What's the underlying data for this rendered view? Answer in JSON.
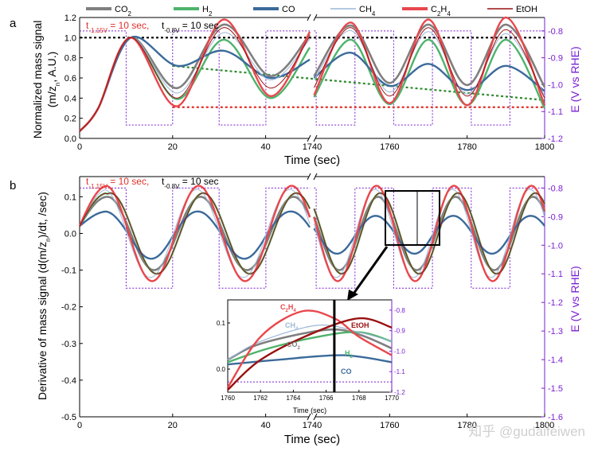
{
  "figure": {
    "watermark": "知乎 @gudaifeiwen",
    "x_break_label": "1740",
    "x_label": "Time (sec)"
  },
  "legend": {
    "items": [
      {
        "key": "co2",
        "label_main": "CO",
        "label_sub": "2",
        "color": "#7f7f7f"
      },
      {
        "key": "h2",
        "label_main": "H",
        "label_sub": "2",
        "color": "#4db36b"
      },
      {
        "key": "co",
        "label_main": "CO",
        "label_sub": "",
        "color": "#3b6a9a"
      },
      {
        "key": "ch4",
        "label_main": "CH",
        "label_sub": "4",
        "color": "#9cb8d8"
      },
      {
        "key": "c2h4",
        "label_main": "C",
        "label_sub": "2",
        "label_main2": "H",
        "label_sub2": "4",
        "color": "#e8474c"
      },
      {
        "key": "etoh",
        "label_main": "EtOH",
        "label_sub": "",
        "color": "#9a1010"
      }
    ]
  },
  "colors": {
    "potential": "#7a1fd1",
    "right_axis": "#7a1fd1",
    "trend_green": "#2e8b2e",
    "trend_red": "#e0302a",
    "ref_black": "#000000",
    "annotation_red": "#e0302a"
  },
  "panel_a": {
    "letter": "a",
    "annotation_red": "t",
    "annotation_red_sub": "-1.15V",
    "annotation_red_tail": " = 10 sec,",
    "annotation_black": "t",
    "annotation_black_sub": "-0.8V",
    "annotation_black_tail": " = 10 sec",
    "y_label_line1": "Normalized mass signal",
    "y_label_line2": "(m/z",
    "y_label_line2_sub": "n",
    "y_label_line2_tail": ", A.U.)",
    "right_label": "E (V vs RHE)",
    "x_ticks_left": [
      "0",
      "20",
      "40"
    ],
    "x_ticks_right": [
      "1760",
      "1780",
      "1800"
    ],
    "y_ticks": [
      "0.0",
      "0.2",
      "0.4",
      "0.6",
      "0.8",
      "1.0",
      "1.2"
    ],
    "right_ticks": [
      "-0.8",
      "-0.9",
      "-1.0",
      "-1.1",
      "-1.2"
    ]
  },
  "panel_b": {
    "letter": "b",
    "annotation_red": "t",
    "annotation_red_sub": "-1.15V",
    "annotation_red_tail": " = 10 sec,",
    "annotation_black": "t",
    "annotation_black_sub": "-0.8V",
    "annotation_black_tail": " = 10 sec",
    "y_label": "Derivative of mass signal (d(m/z",
    "y_label_sub": "n",
    "y_label_tail": ")/dt, /sec)",
    "right_label": "E (V vs RHE)",
    "x_ticks_left": [
      "0",
      "20",
      "40"
    ],
    "x_ticks_right": [
      "1760",
      "1780",
      "1800"
    ],
    "y_ticks": [
      "-0.5",
      "-0.4",
      "-0.3",
      "-0.2",
      "-0.1",
      "0.0",
      "0.1"
    ],
    "right_ticks": [
      "-0.8",
      "-0.9",
      "-1.0",
      "-1.1",
      "-1.2",
      "-1.3",
      "-1.4",
      "-1.5",
      "-1.6"
    ]
  },
  "inset": {
    "x_label": "Time (sec)",
    "x_ticks": [
      "1760",
      "1762",
      "1764",
      "1766",
      "1768",
      "1770"
    ],
    "y_ticks": [
      "0.0",
      "0.1"
    ],
    "right_ticks": [
      "-0.8",
      "-0.9",
      "-1.0",
      "-1.1",
      "-1.2"
    ],
    "labels": {
      "c2h4_main": "C",
      "c2h4_s1": "2",
      "c2h4_m2": "H",
      "c2h4_s2": "4",
      "ch4_main": "CH",
      "ch4_sub": "4",
      "co2_main": "CO",
      "co2_sub": "2",
      "etoh": "EtOH",
      "h2_main": "H",
      "h2_sub": "2",
      "co": "CO"
    },
    "marker_time": 1766.5
  },
  "chart_data": [
    {
      "type": "line",
      "panel": "a",
      "title": "",
      "xlabel": "Time (sec)",
      "ylabel": "Normalized mass signal (m/zn, A.U.)",
      "y2label": "E (V vs RHE)",
      "x_segments": [
        [
          0,
          50
        ],
        [
          1740,
          1800
        ]
      ],
      "ylim": [
        0.0,
        1.2
      ],
      "y2lim": [
        -1.2,
        -0.75
      ],
      "potential_step": {
        "low": -1.15,
        "high": -0.8,
        "period_sec": 20,
        "low_duration_sec": 10,
        "high_duration_sec": 10
      },
      "reference_line_y": 1.0,
      "trend_lines": {
        "green": {
          "x": [
            20,
            1800
          ],
          "y": [
            0.72,
            0.38
          ]
        },
        "red": {
          "x": [
            20,
            1800
          ],
          "y": [
            0.31,
            0.31
          ]
        }
      },
      "peak_times": {
        "segment1": [
          11,
          31,
          50
        ],
        "segment2": [
          1750,
          1770,
          1790
        ]
      },
      "series": [
        {
          "name": "CO2",
          "peak_values": [
            1.0,
            1.13,
            1.12,
            1.13,
            1.13,
            1.12
          ],
          "trough_values": [
            0.5,
            0.62,
            0.55,
            0.53,
            0.51
          ]
        },
        {
          "name": "H2",
          "peak_values": [
            1.0,
            0.98,
            0.98,
            0.98,
            0.98,
            0.96
          ],
          "trough_values": [
            0.39,
            0.4,
            0.34,
            0.33,
            0.3
          ]
        },
        {
          "name": "CO",
          "peak_values": [
            1.0,
            0.87,
            0.85,
            0.74,
            0.72,
            0.66
          ],
          "trough_values": [
            0.72,
            0.6,
            0.52,
            0.48,
            0.47
          ]
        },
        {
          "name": "CH4",
          "peak_values": [
            1.0,
            1.05,
            1.07,
            1.06,
            1.04,
            1.05
          ],
          "trough_values": [
            0.45,
            0.58,
            0.46,
            0.44,
            0.42
          ]
        },
        {
          "name": "C2H4",
          "peak_values": [
            1.0,
            1.18,
            1.15,
            1.18,
            1.2,
            1.2
          ],
          "trough_values": [
            0.32,
            0.42,
            0.35,
            0.33,
            0.33
          ]
        },
        {
          "name": "EtOH",
          "peak_values": [
            1.0,
            1.1,
            1.1,
            1.1,
            1.08,
            1.08
          ],
          "trough_values": [
            0.4,
            0.5,
            0.42,
            0.42,
            0.4
          ]
        }
      ]
    },
    {
      "type": "line",
      "panel": "b",
      "title": "",
      "xlabel": "Time (sec)",
      "ylabel": "Derivative of mass signal (d(m/zn)/dt, /sec)",
      "y2label": "E (V vs RHE)",
      "x_segments": [
        [
          0,
          50
        ],
        [
          1740,
          1800
        ]
      ],
      "ylim": [
        -0.5,
        0.15
      ],
      "y2lim": [
        -1.6,
        -0.75
      ],
      "potential_step": {
        "low": -1.15,
        "high": -0.8,
        "period_sec": 20
      },
      "series": [
        {
          "name": "CO2",
          "amplitude": 0.1
        },
        {
          "name": "H2",
          "amplitude": 0.11
        },
        {
          "name": "CO",
          "amplitude": 0.06
        },
        {
          "name": "CH4",
          "amplitude": 0.12
        },
        {
          "name": "C2H4",
          "amplitude": 0.13
        },
        {
          "name": "EtOH",
          "amplitude": 0.11
        }
      ]
    },
    {
      "type": "line",
      "panel": "inset",
      "xlabel": "Time (sec)",
      "xlim": [
        1760,
        1770
      ],
      "ylim": [
        -0.05,
        0.15
      ],
      "y2lim": [
        -1.2,
        -0.75
      ],
      "marker_x": 1766.5,
      "series": [
        {
          "name": "C2H4",
          "peak_x": 1764.5,
          "peak_y": 0.125
        },
        {
          "name": "CH4",
          "peak_x": 1765.5,
          "peak_y": 0.095
        },
        {
          "name": "CO2",
          "peak_x": 1766.0,
          "peak_y": 0.085
        },
        {
          "name": "EtOH",
          "peak_x": 1768.0,
          "peak_y": 0.11
        },
        {
          "name": "H2",
          "peak_x": 1768.0,
          "peak_y": 0.08
        },
        {
          "name": "CO",
          "peak_x": 1767.0,
          "peak_y": 0.03
        }
      ]
    }
  ]
}
